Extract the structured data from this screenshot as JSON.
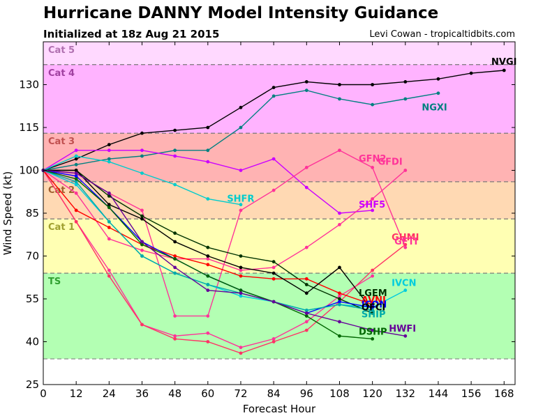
{
  "title": "Hurricane DANNY Model Intensity Guidance",
  "subtitle": "Initialized at 18z Aug 21 2015",
  "credit": "Levi Cowan - tropicaltidbits.com",
  "chart_data": {
    "type": "line",
    "xlabel": "Forecast Hour",
    "ylabel": "Wind Speed (kt)",
    "xlim": [
      0,
      172
    ],
    "ylim": [
      25,
      145
    ],
    "xticks": [
      0,
      12,
      24,
      36,
      48,
      60,
      72,
      84,
      96,
      108,
      120,
      132,
      144,
      156,
      168
    ],
    "yticks": [
      25,
      40,
      55,
      70,
      85,
      100,
      115,
      130
    ],
    "categories": [
      {
        "name": "Cat 5",
        "from": 137,
        "to": 145,
        "color": "#ffd9ff",
        "label_color": "#b070b0"
      },
      {
        "name": "Cat 4",
        "from": 113,
        "to": 137,
        "color": "#ffb3ff",
        "label_color": "#a040a0"
      },
      {
        "name": "Cat 3",
        "from": 96,
        "to": 113,
        "color": "#ffb3b3",
        "label_color": "#c05050"
      },
      {
        "name": "Cat 2",
        "from": 83,
        "to": 96,
        "color": "#ffd9b3",
        "label_color": "#a06030"
      },
      {
        "name": "Cat 1",
        "from": 64,
        "to": 83,
        "color": "#ffffb3",
        "label_color": "#a0a030"
      },
      {
        "name": "TS",
        "from": 34,
        "to": 64,
        "color": "#b3ffb3",
        "label_color": "#30a030"
      }
    ],
    "series": [
      {
        "name": "NVGI",
        "color": "#000000",
        "x": [
          0,
          12,
          24,
          36,
          48,
          60,
          72,
          84,
          96,
          108,
          120,
          132,
          144,
          156,
          168
        ],
        "y": [
          100,
          104,
          109,
          113,
          114,
          115,
          122,
          129,
          131,
          130,
          130,
          131,
          132,
          134,
          135
        ]
      },
      {
        "name": "NGXI",
        "color": "#008080",
        "x": [
          0,
          12,
          24,
          36,
          48,
          60,
          72,
          84,
          96,
          108,
          120,
          132,
          144
        ],
        "y": [
          100,
          102,
          104,
          105,
          107,
          107,
          115,
          126,
          128,
          125,
          123,
          125,
          127
        ]
      },
      {
        "name": "SHF5",
        "color": "#cc00ff",
        "x": [
          0,
          12,
          24,
          36,
          48,
          60,
          72,
          84,
          96,
          108,
          120
        ],
        "y": [
          100,
          107,
          107,
          107,
          105,
          103,
          100,
          104,
          94,
          85,
          86
        ]
      },
      {
        "name": "GFN2",
        "color": "#ff3399",
        "x": [
          0,
          12,
          24,
          36,
          48,
          60,
          72,
          84,
          96,
          108,
          120
        ],
        "y": [
          100,
          82,
          65,
          46,
          42,
          43,
          38,
          41,
          47,
          56,
          63
        ]
      },
      {
        "name": "GFDI",
        "color": "#ff3399",
        "x": [
          0,
          12,
          24,
          36,
          48,
          60,
          72,
          84,
          96,
          108,
          120,
          132
        ],
        "y": [
          100,
          92,
          76,
          72,
          69,
          69,
          65,
          66,
          73,
          81,
          90,
          100
        ]
      },
      {
        "name": "SHFR",
        "color": "#00cccc",
        "x": [
          0,
          12,
          24,
          36,
          48,
          60,
          72
        ],
        "y": [
          100,
          105,
          103,
          99,
          95,
          90,
          88
        ]
      },
      {
        "name": "GHMI",
        "color": "#ff3366",
        "x": [
          0,
          12,
          24,
          36,
          48,
          60,
          72,
          84,
          96,
          108,
          120,
          132
        ],
        "y": [
          100,
          82,
          63,
          46,
          41,
          40,
          36,
          40,
          44,
          54,
          65,
          74
        ]
      },
      {
        "name": "GFTI",
        "color": "#ff3399",
        "x": [
          0,
          12,
          24,
          36,
          48,
          60,
          72,
          84,
          96,
          108,
          120,
          132
        ],
        "y": [
          100,
          99,
          92,
          86,
          49,
          49,
          86,
          93,
          101,
          107,
          101,
          73
        ]
      },
      {
        "name": "IVCN",
        "color": "#00ccdd",
        "x": [
          0,
          12,
          24,
          36,
          48,
          60,
          72,
          84,
          96,
          108,
          120,
          132
        ],
        "y": [
          100,
          95,
          82,
          70,
          64,
          60,
          56,
          54,
          51,
          53,
          52,
          58
        ]
      },
      {
        "name": "LGEM",
        "color": "#003300",
        "x": [
          0,
          12,
          24,
          36,
          48,
          60,
          72,
          84,
          96,
          108,
          120
        ],
        "y": [
          100,
          100,
          91,
          84,
          78,
          73,
          70,
          68,
          60,
          55,
          50
        ]
      },
      {
        "name": "AVNI",
        "color": "#ff0000",
        "x": [
          0,
          12,
          24,
          36,
          48,
          60,
          72,
          84,
          96,
          108,
          120
        ],
        "y": [
          100,
          86,
          80,
          74,
          70,
          67,
          63,
          62,
          62,
          57,
          53
        ]
      },
      {
        "name": "ICON",
        "color": "#0000ff",
        "x": [
          0,
          12,
          24,
          36,
          48,
          60,
          72,
          84,
          96,
          108,
          120
        ],
        "y": [
          100,
          98,
          87,
          75,
          69,
          63,
          58,
          54,
          50,
          54,
          52
        ]
      },
      {
        "name": "OFCI",
        "color": "#000000",
        "x": [
          0,
          12,
          24,
          36,
          48,
          60,
          72,
          84,
          96,
          108,
          120
        ],
        "y": [
          100,
          100,
          88,
          83,
          75,
          70,
          66,
          64,
          57,
          66,
          51
        ]
      },
      {
        "name": "SHIP",
        "color": "#00aaaa",
        "x": [
          0,
          12,
          24,
          36,
          48,
          60,
          72,
          84,
          96,
          108,
          120
        ],
        "y": [
          100,
          96,
          82,
          70,
          64,
          60,
          57,
          54,
          51,
          53,
          51
        ]
      },
      {
        "name": "DSHP",
        "color": "#006600",
        "x": [
          0,
          12,
          24,
          36,
          48,
          60,
          72,
          84,
          96,
          108,
          120
        ],
        "y": [
          100,
          97,
          87,
          74,
          69,
          63,
          58,
          54,
          49,
          42,
          41
        ]
      },
      {
        "name": "HWFI",
        "color": "#660099",
        "x": [
          0,
          12,
          24,
          36,
          48,
          60,
          72,
          84,
          96,
          108,
          120,
          132
        ],
        "y": [
          100,
          99,
          92,
          75,
          66,
          58,
          57,
          54,
          50,
          47,
          44,
          42
        ]
      }
    ]
  },
  "series_labels": [
    {
      "name": "NVGI",
      "x": 168,
      "y": 137,
      "anchor": "middle"
    },
    {
      "name": "NGXI",
      "x": 138,
      "y": 121,
      "anchor": "start"
    },
    {
      "name": "GFN2",
      "x": 115,
      "y": 103,
      "anchor": "start"
    },
    {
      "name": "GFDI",
      "x": 122,
      "y": 102,
      "anchor": "start"
    },
    {
      "name": "SHFR",
      "x": 67,
      "y": 89,
      "anchor": "start"
    },
    {
      "name": "SHF5",
      "x": 115,
      "y": 87,
      "anchor": "start"
    },
    {
      "name": "GHMI",
      "x": 127,
      "y": 75.5,
      "anchor": "start"
    },
    {
      "name": "GFTI",
      "x": 128,
      "y": 74,
      "anchor": "start"
    },
    {
      "name": "IVCN",
      "x": 127,
      "y": 59.5,
      "anchor": "start"
    },
    {
      "name": "LGEM",
      "x": 115,
      "y": 56,
      "anchor": "start"
    },
    {
      "name": "AVNI",
      "x": 116,
      "y": 53.5,
      "anchor": "start"
    },
    {
      "name": "ICON",
      "x": 116,
      "y": 52,
      "anchor": "start"
    },
    {
      "name": "OFCI",
      "x": 116,
      "y": 51,
      "anchor": "start"
    },
    {
      "name": "SHIP",
      "x": 116,
      "y": 48.5,
      "anchor": "start"
    },
    {
      "name": "DSHP",
      "x": 115,
      "y": 42.5,
      "anchor": "start"
    },
    {
      "name": "HWFI",
      "x": 126,
      "y": 43.5,
      "anchor": "start"
    }
  ]
}
